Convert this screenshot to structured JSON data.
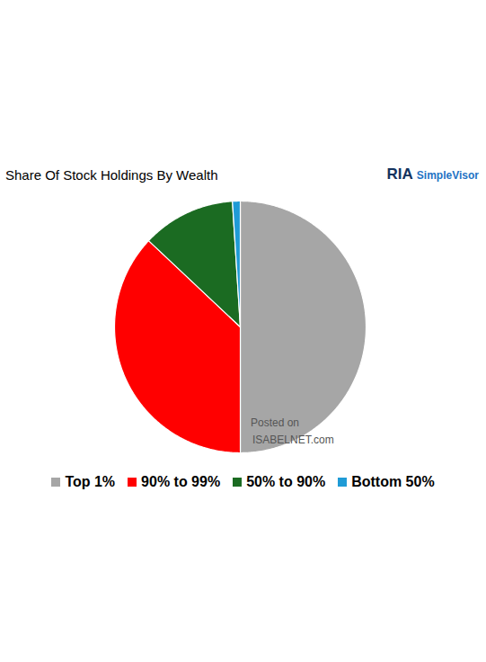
{
  "chart_data": {
    "type": "pie",
    "title": "Share Of Stock Holdings By Wealth",
    "categories": [
      "Top 1%",
      "90% to 99%",
      "50% to 90%",
      "Bottom 50%"
    ],
    "values": [
      50,
      37,
      12,
      1
    ],
    "colors": [
      "#a6a6a6",
      "#ff0000",
      "#1b6b22",
      "#1f9bd6"
    ],
    "legend": "bottom",
    "data_labels": false,
    "tick_labels": false,
    "annotations": [
      "RIA SimpleVisor",
      "Posted on ISABELNET.com"
    ]
  }
}
